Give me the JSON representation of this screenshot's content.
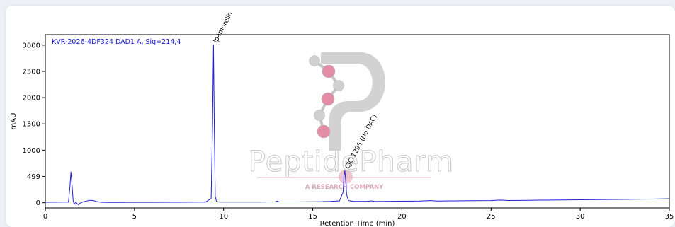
{
  "chart_data": {
    "type": "line",
    "title": "KVR-2026-4DF324 DAD1 A, Sig=214,4",
    "xlabel": "Retention Time (min)",
    "ylabel": "mAU",
    "xlim": [
      0,
      35
    ],
    "ylim": [
      -100,
      3200
    ],
    "x_ticks": [
      0,
      5,
      10,
      15,
      20,
      25,
      30,
      35
    ],
    "y_ticks": [
      0,
      499,
      1000,
      1500,
      2000,
      2500,
      3000
    ],
    "grid": false,
    "line_color": "#2222cc",
    "series": [
      {
        "x": [
          0,
          1.3,
          1.38,
          1.44,
          1.5,
          1.56,
          1.62,
          1.7,
          1.85,
          1.95,
          2.1,
          2.3,
          2.5,
          2.7,
          2.9,
          3.1,
          3.5,
          4.0,
          5,
          6,
          7,
          8,
          9,
          9.3,
          9.38,
          9.43,
          9.48,
          9.53,
          9.6,
          9.7,
          9.85,
          10.2,
          11,
          12,
          12.9,
          13.0,
          13.1,
          14,
          15,
          15.5,
          16,
          16.5,
          16.7,
          16.75,
          16.8,
          16.85,
          16.9,
          17.0,
          17.3,
          18.0,
          18.3,
          18.5,
          19,
          20,
          21,
          21.6,
          22,
          23,
          24,
          25,
          25.5,
          26,
          27,
          28,
          29,
          30,
          31,
          32,
          33,
          34,
          35
        ],
        "y": [
          8,
          10,
          300,
          590,
          320,
          40,
          -35,
          10,
          -40,
          -10,
          15,
          30,
          45,
          40,
          20,
          8,
          5,
          5,
          6,
          7,
          8,
          9,
          12,
          80,
          1500,
          3010,
          1400,
          120,
          25,
          15,
          10,
          10,
          10,
          12,
          14,
          30,
          14,
          15,
          18,
          20,
          25,
          35,
          200,
          500,
          610,
          420,
          150,
          40,
          25,
          25,
          35,
          22,
          25,
          28,
          30,
          40,
          32,
          35,
          38,
          40,
          50,
          42,
          45,
          48,
          52,
          55,
          58,
          62,
          65,
          68,
          75
        ]
      }
    ],
    "annotations": [
      {
        "text": "Ipamorelin",
        "x": 9.45,
        "y": 3010
      },
      {
        "text": "CJC-1295 (No DAC)",
        "x": 16.85,
        "y": 610
      }
    ]
  },
  "watermark": {
    "brand": "PeptidePharm",
    "tagline": "A   RESEARCH   COMPANY",
    "logo_letter_color": "#b8b8b8",
    "atom_pink": "#e07a97",
    "atom_grey": "#c8c8c8"
  }
}
